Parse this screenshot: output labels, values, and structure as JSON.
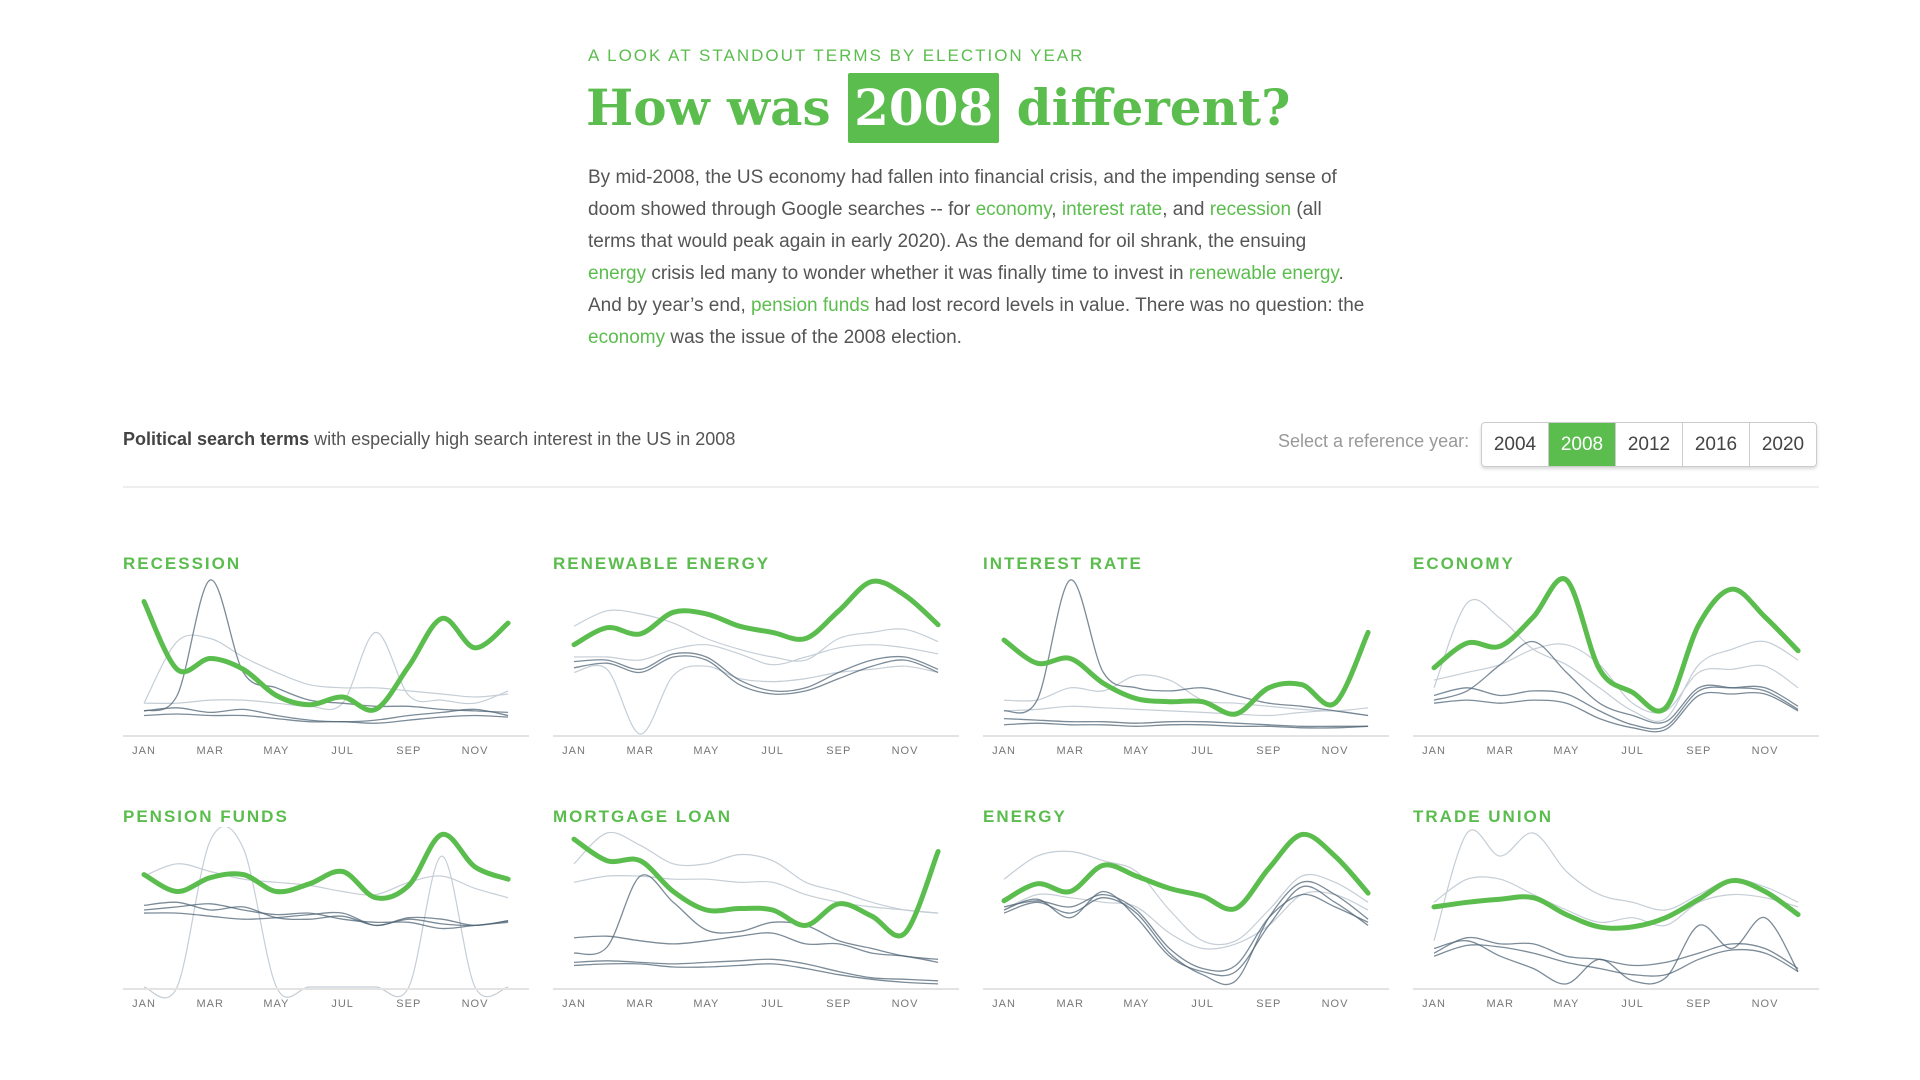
{
  "header": {
    "kicker": "A LOOK AT STANDOUT TERMS BY ELECTION YEAR",
    "title_before": "How was",
    "title_year": "2008",
    "title_after": "different?"
  },
  "intro": {
    "segments": [
      {
        "text": "By mid-2008, the US economy had fallen into financial crisis, and the impending sense of doom showed through Google searches -- for ",
        "highlight": false
      },
      {
        "text": "economy",
        "highlight": true
      },
      {
        "text": ", ",
        "highlight": false
      },
      {
        "text": "interest rate",
        "highlight": true
      },
      {
        "text": ", and ",
        "highlight": false
      },
      {
        "text": "recession",
        "highlight": true
      },
      {
        "text": " (all terms that would peak again in early 2020). As the demand for oil shrank, the ensuing ",
        "highlight": false
      },
      {
        "text": "energy",
        "highlight": true
      },
      {
        "text": " crisis led many to wonder whether it was finally time to invest in ",
        "highlight": false
      },
      {
        "text": "renewable energy",
        "highlight": true
      },
      {
        "text": ". And by year’s end, ",
        "highlight": false
      },
      {
        "text": "pension funds",
        "highlight": true
      },
      {
        "text": " had lost record levels in value. There was no question: the ",
        "highlight": false
      },
      {
        "text": "economy",
        "highlight": true
      },
      {
        "text": " was the issue of the 2008 election.",
        "highlight": false
      }
    ]
  },
  "controls": {
    "summary_bold": "Political search terms",
    "summary_rest": " with especially high search interest in the US in 2008",
    "ref_label": "Select a reference year:",
    "years": [
      "2004",
      "2008",
      "2012",
      "2016",
      "2020"
    ],
    "selected_year": "2008"
  },
  "colors": {
    "accent": "#5bbd4e",
    "reference_dark": "#4f6475",
    "reference_light": "#c5ced6"
  },
  "chart_data": [
    {
      "type": "line",
      "title": "RECESSION",
      "x_ticks": [
        "JAN",
        "MAR",
        "MAY",
        "JUL",
        "SEP",
        "NOV"
      ],
      "months": 12,
      "ylim": [
        0,
        100
      ],
      "highlight": [
        86,
        42,
        49,
        42,
        25,
        19,
        24,
        16,
        44,
        75,
        56,
        72
      ],
      "reference_dark": [
        [
          15,
          25,
          100,
          40,
          30,
          22,
          20,
          18,
          18,
          16,
          15,
          14
        ],
        [
          15,
          17,
          14,
          16,
          12,
          9,
          8,
          9,
          12,
          14,
          16,
          12
        ],
        [
          12,
          13,
          12,
          12,
          10,
          8,
          8,
          7,
          9,
          11,
          12,
          11
        ]
      ],
      "reference_light": [
        [
          20,
          60,
          62,
          50,
          40,
          32,
          30,
          30,
          28,
          26,
          24,
          26
        ],
        [
          20,
          20,
          22,
          22,
          20,
          18,
          20,
          66,
          25,
          22,
          20,
          28
        ]
      ]
    },
    {
      "type": "line",
      "title": "RENEWABLE ENERGY",
      "x_ticks": [
        "JAN",
        "MAR",
        "MAY",
        "JUL",
        "SEP",
        "NOV"
      ],
      "months": 12,
      "ylim": [
        0,
        100
      ],
      "highlight": [
        58,
        69,
        65,
        79,
        78,
        70,
        66,
        62,
        80,
        99,
        90,
        71
      ],
      "reference_dark": [
        [
          47,
          48,
          42,
          52,
          50,
          35,
          28,
          30,
          40,
          48,
          50,
          42
        ],
        [
          43,
          46,
          40,
          50,
          48,
          32,
          26,
          28,
          36,
          44,
          48,
          40
        ]
      ],
      "reference_light": [
        [
          40,
          42,
          0,
          38,
          44,
          36,
          34,
          36,
          40,
          42,
          44,
          40
        ],
        [
          70,
          80,
          78,
          72,
          62,
          55,
          50,
          48,
          62,
          66,
          68,
          60
        ],
        [
          50,
          50,
          48,
          55,
          58,
          52,
          45,
          50,
          56,
          58,
          56,
          52
        ]
      ]
    },
    {
      "type": "line",
      "title": "INTEREST RATE",
      "x_ticks": [
        "JAN",
        "MAR",
        "MAY",
        "JUL",
        "SEP",
        "NOV"
      ],
      "months": 12,
      "ylim": [
        0,
        100
      ],
      "highlight": [
        61,
        46,
        49,
        33,
        23,
        21,
        21,
        13,
        30,
        32,
        20,
        66
      ],
      "reference_dark": [
        [
          15,
          22,
          100,
          40,
          30,
          28,
          30,
          25,
          20,
          18,
          15,
          12
        ],
        [
          10,
          9,
          8,
          8,
          7,
          8,
          8,
          7,
          6,
          5,
          5,
          5
        ],
        [
          6,
          7,
          6,
          6,
          5,
          6,
          6,
          5,
          5,
          4,
          4,
          5
        ]
      ],
      "reference_light": [
        [
          22,
          22,
          30,
          28,
          38,
          35,
          22,
          20,
          18,
          16,
          15,
          17
        ],
        [
          15,
          16,
          18,
          17,
          16,
          15,
          14,
          13,
          12,
          14,
          15,
          12
        ]
      ]
    },
    {
      "type": "line",
      "title": "ECONOMY",
      "x_ticks": [
        "JAN",
        "MAR",
        "MAY",
        "JUL",
        "SEP",
        "NOV"
      ],
      "months": 12,
      "ylim": [
        0,
        100
      ],
      "highlight": [
        43,
        59,
        57,
        76,
        100,
        42,
        27,
        17,
        71,
        94,
        76,
        54
      ],
      "reference_dark": [
        [
          25,
          30,
          25,
          28,
          26,
          15,
          6,
          5,
          28,
          30,
          30,
          18
        ],
        [
          22,
          28,
          45,
          60,
          40,
          20,
          12,
          8,
          30,
          30,
          28,
          16
        ],
        [
          20,
          22,
          20,
          22,
          20,
          10,
          4,
          3,
          25,
          26,
          26,
          15
        ]
      ],
      "reference_light": [
        [
          30,
          85,
          75,
          55,
          45,
          30,
          15,
          10,
          45,
          55,
          60,
          48
        ],
        [
          35,
          40,
          45,
          55,
          58,
          45,
          20,
          15,
          40,
          42,
          44,
          30
        ]
      ]
    },
    {
      "type": "line",
      "title": "PENSION FUNDS",
      "x_ticks": [
        "JAN",
        "MAR",
        "MAY",
        "JUL",
        "SEP",
        "NOV"
      ],
      "months": 12,
      "ylim": [
        0,
        100
      ],
      "highlight": [
        73,
        62,
        71,
        73,
        62,
        67,
        75,
        58,
        66,
        99,
        78,
        70
      ],
      "reference_dark": [
        [
          53,
          55,
          50,
          52,
          45,
          44,
          46,
          40,
          44,
          41,
          40,
          43
        ],
        [
          50,
          52,
          54,
          50,
          47,
          48,
          44,
          42,
          42,
          38,
          40,
          42
        ],
        [
          48,
          48,
          46,
          44,
          45,
          47,
          48,
          40,
          45,
          44,
          40,
          43
        ]
      ],
      "reference_light": [
        [
          0,
          0,
          95,
          90,
          0,
          0,
          0,
          0,
          0,
          85,
          0,
          0
        ],
        [
          72,
          80,
          75,
          70,
          68,
          66,
          62,
          60,
          68,
          72,
          64,
          58
        ]
      ]
    },
    {
      "type": "line",
      "title": "MORTGAGE LOAN",
      "x_ticks": [
        "JAN",
        "MAR",
        "MAY",
        "JUL",
        "SEP",
        "NOV"
      ],
      "months": 12,
      "ylim": [
        0,
        100
      ],
      "highlight": [
        96,
        82,
        82,
        62,
        50,
        51,
        50,
        40,
        54,
        46,
        35,
        88
      ],
      "reference_dark": [
        [
          22,
          26,
          72,
          55,
          37,
          36,
          42,
          40,
          30,
          25,
          20,
          18
        ],
        [
          32,
          33,
          30,
          28,
          30,
          33,
          35,
          28,
          28,
          22,
          20,
          16
        ],
        [
          16,
          17,
          16,
          15,
          16,
          17,
          18,
          15,
          10,
          6,
          5,
          4
        ],
        [
          14,
          15,
          15,
          13,
          13,
          14,
          15,
          12,
          8,
          5,
          3,
          2
        ]
      ],
      "reference_light": [
        [
          80,
          100,
          92,
          80,
          80,
          86,
          82,
          68,
          62,
          55,
          50,
          48
        ],
        [
          68,
          72,
          72,
          70,
          70,
          68,
          68,
          60,
          55,
          52,
          50,
          48
        ]
      ]
    },
    {
      "type": "line",
      "title": "ENERGY",
      "x_ticks": [
        "JAN",
        "MAR",
        "MAY",
        "JUL",
        "SEP",
        "NOV"
      ],
      "months": 12,
      "ylim": [
        0,
        100
      ],
      "highlight": [
        56,
        67,
        62,
        79,
        72,
        64,
        59,
        51,
        77,
        99,
        85,
        61
      ],
      "reference_dark": [
        [
          50,
          57,
          45,
          62,
          45,
          20,
          10,
          10,
          40,
          65,
          55,
          40
        ],
        [
          48,
          55,
          48,
          58,
          48,
          22,
          8,
          4,
          45,
          68,
          60,
          44
        ],
        [
          52,
          56,
          52,
          60,
          50,
          25,
          12,
          14,
          45,
          60,
          52,
          42
        ]
      ],
      "reference_light": [
        [
          70,
          85,
          88,
          82,
          75,
          50,
          30,
          30,
          50,
          72,
          68,
          55
        ],
        [
          50,
          60,
          58,
          55,
          52,
          35,
          25,
          28,
          40,
          60,
          60,
          50
        ]
      ]
    },
    {
      "type": "line",
      "title": "TRADE UNION",
      "x_ticks": [
        "JAN",
        "MAR",
        "MAY",
        "JUL",
        "SEP",
        "NOV"
      ],
      "months": 12,
      "ylim": [
        0,
        100
      ],
      "highlight": [
        52,
        55,
        57,
        58,
        47,
        39,
        39,
        45,
        57,
        69,
        62,
        47
      ],
      "reference_dark": [
        [
          22,
          32,
          28,
          28,
          20,
          18,
          14,
          16,
          22,
          28,
          25,
          12
        ],
        [
          25,
          30,
          20,
          12,
          2,
          18,
          4,
          6,
          40,
          25,
          45,
          10
        ],
        [
          20,
          27,
          26,
          22,
          16,
          12,
          8,
          8,
          18,
          24,
          22,
          10
        ]
      ],
      "reference_light": [
        [
          30,
          100,
          85,
          100,
          75,
          60,
          55,
          50,
          60,
          70,
          65,
          55
        ],
        [
          55,
          70,
          70,
          60,
          50,
          42,
          45,
          40,
          55,
          60,
          58,
          52
        ]
      ]
    }
  ]
}
